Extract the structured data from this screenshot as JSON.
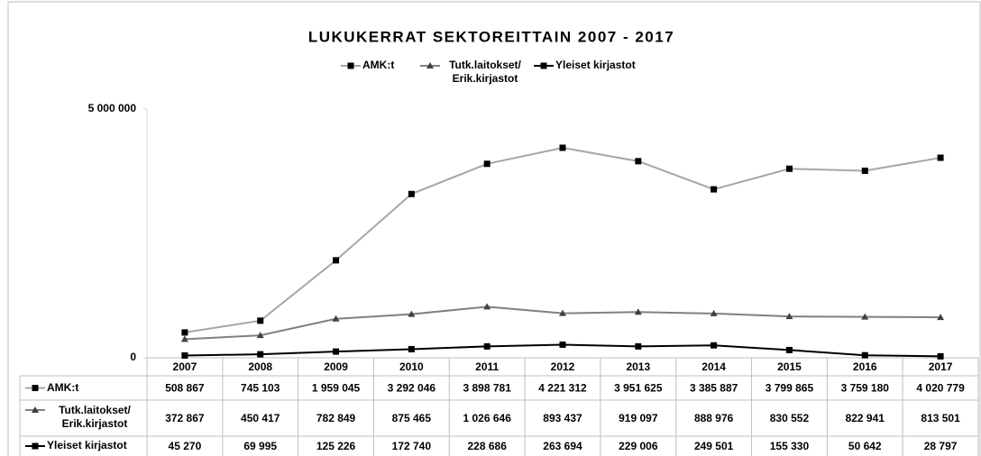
{
  "chart_data": {
    "type": "line",
    "title": "LUKUKERRAT SEKTOREITTAIN 2007 - 2017",
    "categories": [
      "2007",
      "2008",
      "2009",
      "2010",
      "2011",
      "2012",
      "2013",
      "2014",
      "2015",
      "2016",
      "2017"
    ],
    "ylim": [
      0,
      5000000
    ],
    "yticks": [
      0,
      {
        "value": 5000000,
        "label": "5 000 000"
      }
    ],
    "series": [
      {
        "name": "AMK:t",
        "color": "#a6a6a6",
        "marker": "square",
        "values": [
          508867,
          745103,
          1959045,
          3292046,
          3898781,
          4221312,
          3951625,
          3385887,
          3799865,
          3759180,
          4020779
        ],
        "value_labels": [
          "508 867",
          "745 103",
          "1 959 045",
          "3 292 046",
          "3 898 781",
          "4 221 312",
          "3 951 625",
          "3 385 887",
          "3 799 865",
          "3 759 180",
          "4 020 779"
        ]
      },
      {
        "name": "Tutk.laitokset/ Erik.kirjastot",
        "color": "#808080",
        "marker": "triangle",
        "values": [
          372867,
          450417,
          782849,
          875465,
          1026646,
          893437,
          919097,
          888976,
          830552,
          822941,
          813501
        ],
        "value_labels": [
          "372 867",
          "450 417",
          "782 849",
          "875 465",
          "1 026 646",
          "893 437",
          "919 097",
          "888 976",
          "830 552",
          "822 941",
          "813 501"
        ]
      },
      {
        "name": "Yleiset kirjastot",
        "color": "#000000",
        "marker": "square",
        "values": [
          45270,
          69995,
          125226,
          172740,
          228686,
          263694,
          229006,
          249501,
          155330,
          50642,
          28797
        ],
        "value_labels": [
          "45 270",
          "69 995",
          "125 226",
          "172 740",
          "228 686",
          "263 694",
          "229 006",
          "249 501",
          "155 330",
          "50 642",
          "28 797"
        ]
      }
    ]
  }
}
